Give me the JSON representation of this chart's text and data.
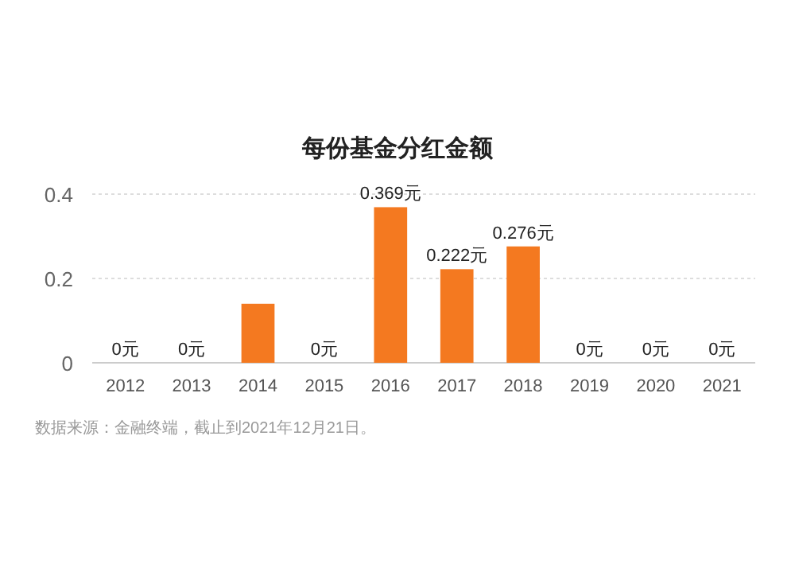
{
  "chart_data": {
    "type": "bar",
    "title": "每份基金分红金额",
    "categories": [
      "2012",
      "2013",
      "2014",
      "2015",
      "2016",
      "2017",
      "2018",
      "2019",
      "2020",
      "2021"
    ],
    "values": [
      0,
      0,
      0.14,
      0,
      0.369,
      0.222,
      0.276,
      0,
      0,
      0
    ],
    "value_labels": [
      "0元",
      "0元",
      null,
      "0元",
      "0.369元",
      "0.222元",
      "0.276元",
      "0元",
      "0元",
      "0元"
    ],
    "color": "#f47920",
    "ylim": [
      0,
      0.4
    ],
    "yticks": [
      0,
      0.2,
      0.4
    ],
    "grid": "y",
    "annotations": [
      "数据来源：金融终端，截止到2021年12月21日。"
    ]
  }
}
